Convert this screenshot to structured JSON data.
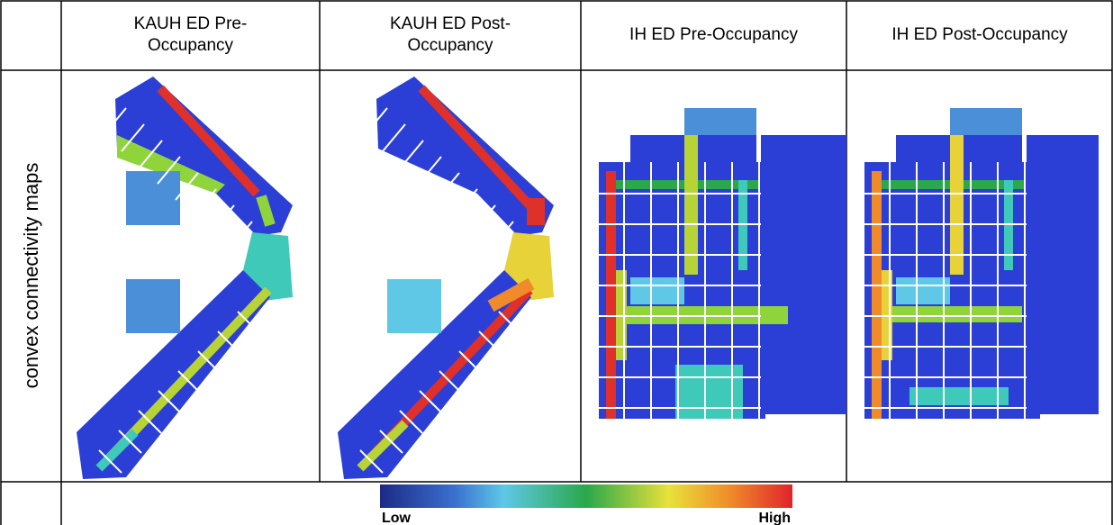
{
  "table": {
    "header": [
      "KAUH ED Pre-Occupancy",
      "KAUH ED Post-Occupancy",
      "IH ED Pre-Occupancy",
      "IH ED Post-Occupancy"
    ],
    "rows": [
      {
        "label": "convex connectivity maps"
      }
    ],
    "legend": {
      "low": "Low",
      "high": "High"
    }
  }
}
